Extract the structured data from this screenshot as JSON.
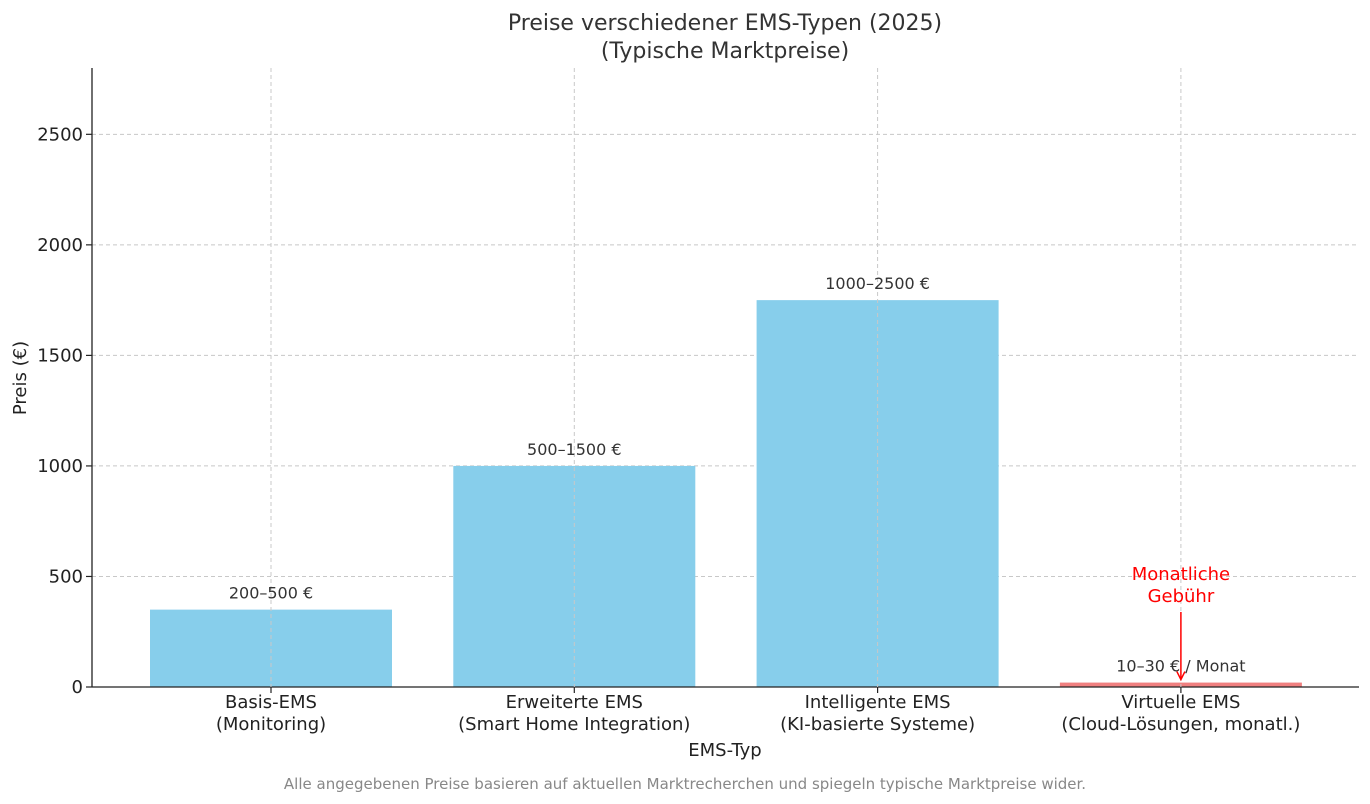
{
  "chart_data": {
    "type": "bar",
    "title": [
      "Preise verschiedener EMS-Typen (2025)",
      "(Typische Marktpreise)"
    ],
    "xlabel": "EMS-Typ",
    "ylabel": "Preis (€)",
    "ylim": [
      0,
      2800
    ],
    "yticks": [
      0,
      500,
      1000,
      1500,
      2000,
      2500
    ],
    "grid": true,
    "categories": [
      [
        "Basis-EMS",
        "(Monitoring)"
      ],
      [
        "Erweiterte EMS",
        "(Smart Home Integration)"
      ],
      [
        "Intelligente EMS",
        "(KI-basierte Systeme)"
      ],
      [
        "Virtuelle EMS",
        "(Cloud-Lösungen, monatl.)"
      ]
    ],
    "values": [
      350,
      1000,
      1750,
      20
    ],
    "data_labels": [
      "200–500 €",
      "500–1500 €",
      "1000–2500 €",
      "10–30 € / Monat"
    ],
    "colors": [
      "#87ceeb",
      "#87ceeb",
      "#87ceeb",
      "#f08080"
    ],
    "annotation": {
      "text": [
        "Monatliche",
        "Gebühr"
      ],
      "color": "#ff0000",
      "target_category": 3,
      "target_value": 20
    },
    "footnote": "Alle angegebenen Preise basieren auf aktuellen Marktrecherchen und spiegeln typische Marktpreise wider."
  }
}
